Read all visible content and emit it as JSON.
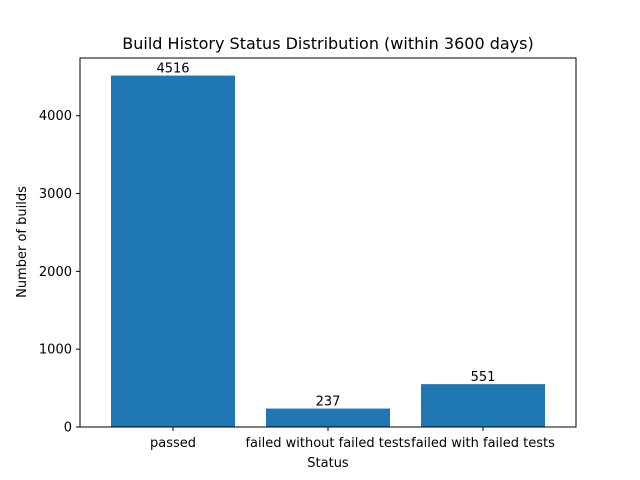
{
  "chart_data": {
    "type": "bar",
    "title": "Build History Status Distribution (within 3600 days)",
    "xlabel": "Status",
    "ylabel": "Number of builds",
    "categories": [
      "passed",
      "failed without failed tests",
      "failed with failed tests"
    ],
    "values": [
      4516,
      237,
      551
    ],
    "data_labels": [
      "4516",
      "237",
      "551"
    ],
    "ylim": [
      0,
      4741.8
    ],
    "yticks": [
      0,
      1000,
      2000,
      3000,
      4000
    ],
    "ytick_labels": [
      "0",
      "1000",
      "2000",
      "3000",
      "4000"
    ],
    "bar_color": "#1f77b4",
    "grid": false,
    "legend": "none"
  }
}
